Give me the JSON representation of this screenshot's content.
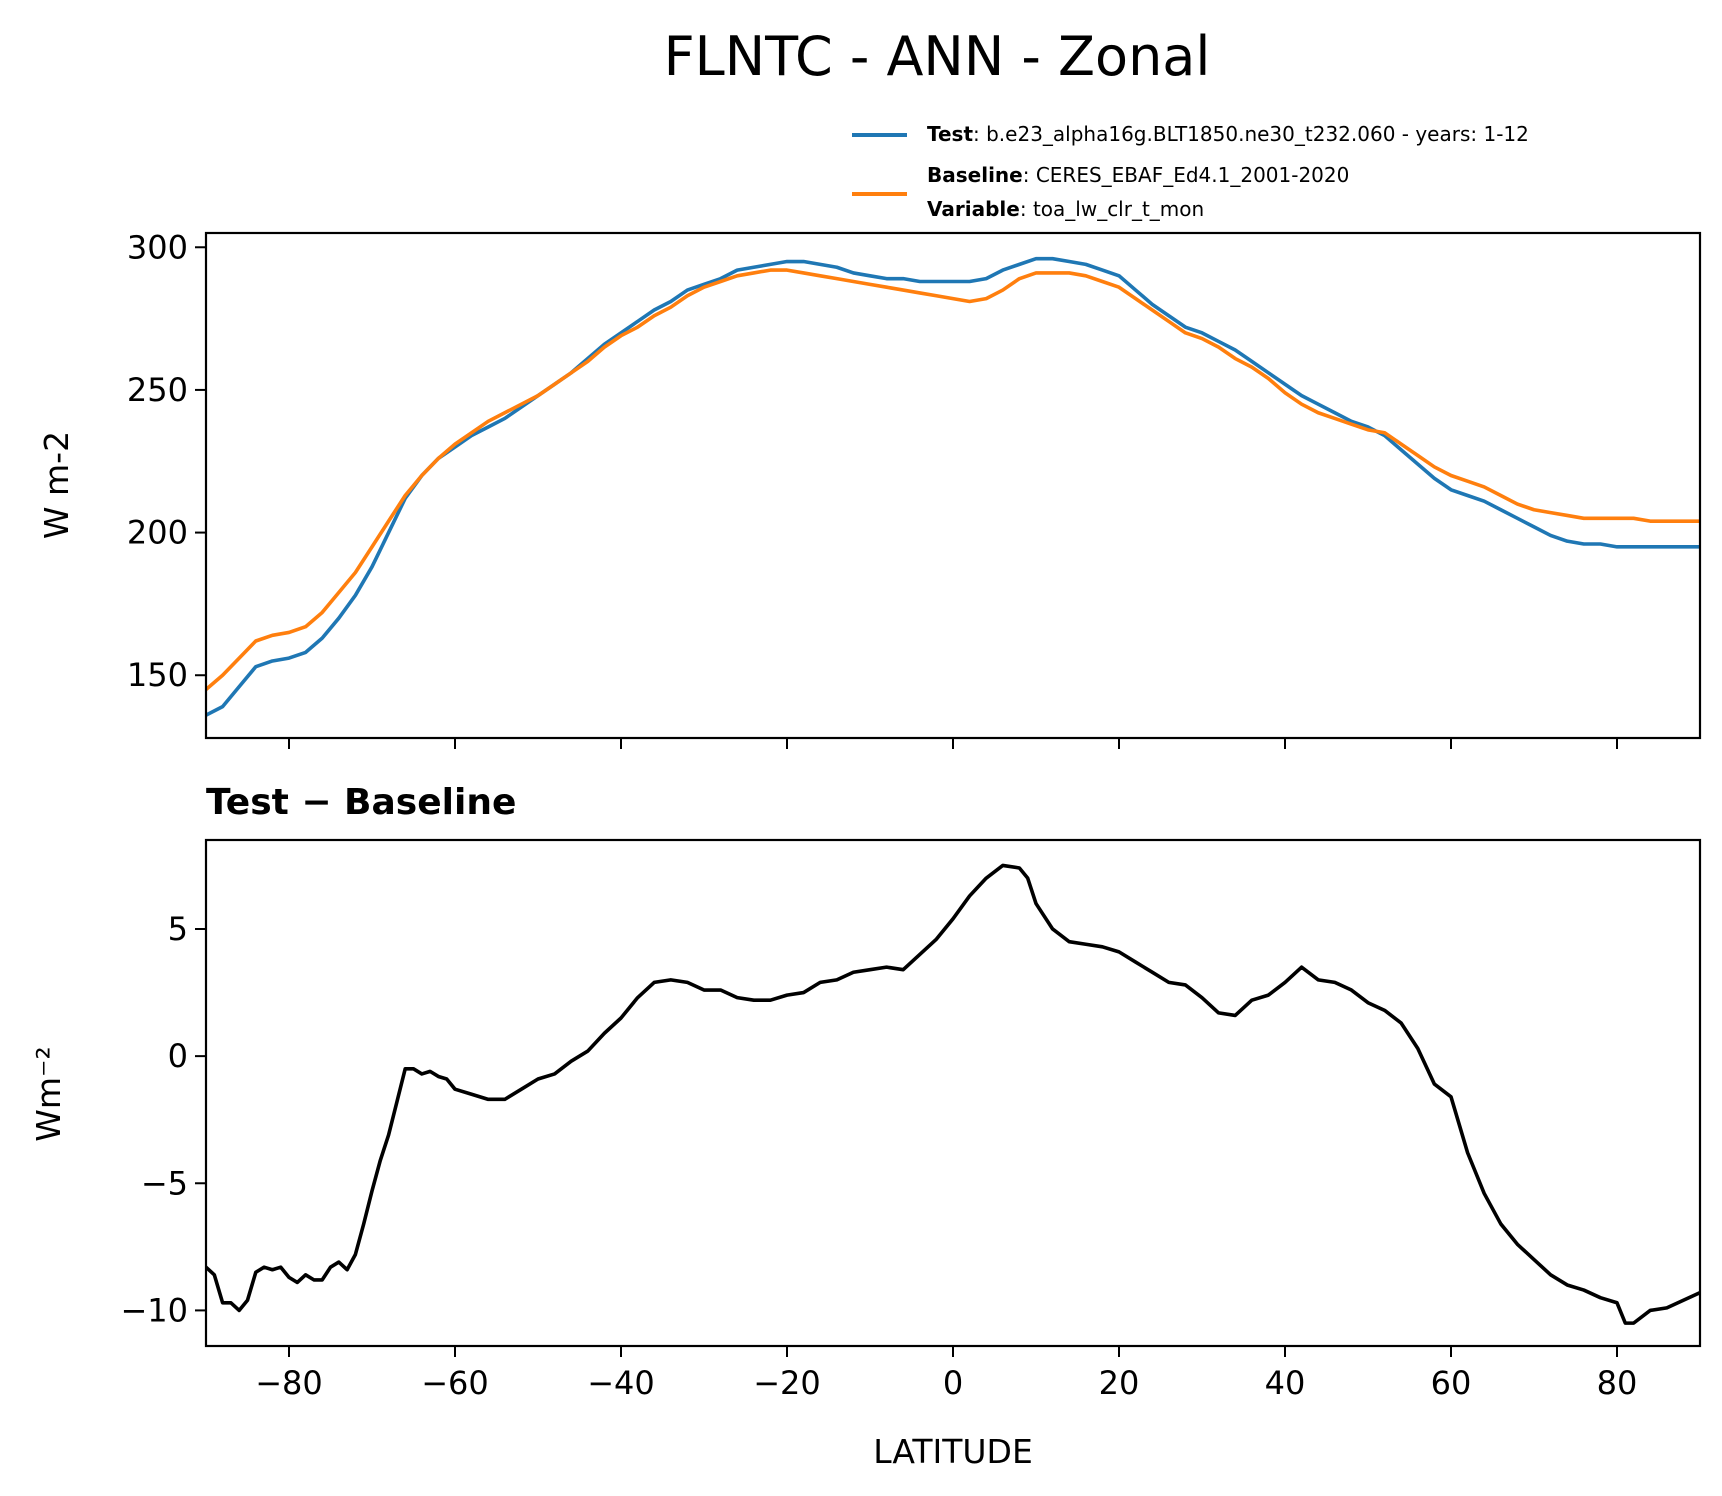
{
  "figure": {
    "title": "FLNTC - ANN - Zonal"
  },
  "legend": {
    "test_key": "Test",
    "test_value": ": b.e23_alpha16g.BLT1850.ne30_t232.060 - years: 1-12",
    "baseline_key": "Baseline",
    "baseline_value": ": CERES_EBAF_Ed4.1_2001-2020",
    "variable_key": "Variable",
    "variable_value": ": toa_lw_clr_t_mon"
  },
  "colors": {
    "test": "#1f77b4",
    "baseline": "#ff7f0e",
    "diff": "#000000"
  },
  "chart_data": [
    {
      "type": "line",
      "ylabel": "W m-2",
      "xlim": [
        -90,
        90
      ],
      "ylim": [
        128,
        305
      ],
      "yticks": [
        150,
        200,
        250,
        300
      ],
      "xticks": [
        -80,
        -60,
        -40,
        -20,
        0,
        20,
        40,
        60,
        80
      ],
      "grid": false,
      "legend_position": "above-right",
      "x": [
        -90,
        -88,
        -86,
        -84,
        -82,
        -80,
        -78,
        -76,
        -74,
        -72,
        -70,
        -68,
        -66,
        -64,
        -62,
        -60,
        -58,
        -56,
        -54,
        -52,
        -50,
        -48,
        -46,
        -44,
        -42,
        -40,
        -38,
        -36,
        -34,
        -32,
        -30,
        -28,
        -26,
        -24,
        -22,
        -20,
        -18,
        -16,
        -14,
        -12,
        -10,
        -8,
        -6,
        -4,
        -2,
        0,
        2,
        4,
        6,
        8,
        10,
        12,
        14,
        16,
        18,
        20,
        22,
        24,
        26,
        28,
        30,
        32,
        34,
        36,
        38,
        40,
        42,
        44,
        46,
        48,
        50,
        52,
        54,
        56,
        58,
        60,
        62,
        64,
        66,
        68,
        70,
        72,
        74,
        76,
        78,
        80,
        82,
        84,
        86,
        88,
        90
      ],
      "series": [
        {
          "name": "Test",
          "color": "#1f77b4",
          "values": [
            136,
            139,
            146,
            153,
            155,
            156,
            158,
            163,
            170,
            178,
            188,
            200,
            212,
            220,
            226,
            230,
            234,
            237,
            240,
            244,
            248,
            252,
            256,
            261,
            266,
            270,
            274,
            278,
            281,
            285,
            287,
            289,
            292,
            293,
            294,
            295,
            295,
            294,
            293,
            291,
            290,
            289,
            289,
            288,
            288,
            288,
            288,
            289,
            292,
            294,
            296,
            296,
            295,
            294,
            292,
            290,
            285,
            280,
            276,
            272,
            270,
            267,
            264,
            260,
            256,
            252,
            248,
            245,
            242,
            239,
            237,
            234,
            229,
            224,
            219,
            215,
            213,
            211,
            208,
            205,
            202,
            199,
            197,
            196,
            196,
            195,
            195,
            195,
            195,
            195,
            195
          ]
        },
        {
          "name": "Baseline",
          "color": "#ff7f0e",
          "values": [
            145,
            150,
            156,
            162,
            164,
            165,
            167,
            172,
            179,
            186,
            195,
            204,
            213,
            220,
            226,
            231,
            235,
            239,
            242,
            245,
            248,
            252,
            256,
            260,
            265,
            269,
            272,
            276,
            279,
            283,
            286,
            288,
            290,
            291,
            292,
            292,
            291,
            290,
            289,
            288,
            287,
            286,
            285,
            284,
            283,
            282,
            281,
            282,
            285,
            289,
            291,
            291,
            291,
            290,
            288,
            286,
            282,
            278,
            274,
            270,
            268,
            265,
            261,
            258,
            254,
            249,
            245,
            242,
            240,
            238,
            236,
            235,
            231,
            227,
            223,
            220,
            218,
            216,
            213,
            210,
            208,
            207,
            206,
            205,
            205,
            205,
            205,
            204,
            204,
            204,
            204
          ]
        }
      ]
    },
    {
      "type": "line",
      "title": "Test − Baseline",
      "xlabel": "LATITUDE",
      "ylabel": "Wm⁻²",
      "xlim": [
        -90,
        90
      ],
      "ylim": [
        -11.4,
        8.5
      ],
      "yticks": [
        -10,
        -5,
        0,
        5
      ],
      "xticks": [
        -80,
        -60,
        -40,
        -20,
        0,
        20,
        40,
        60,
        80
      ],
      "xtick_labels": [
        "−80",
        "−60",
        "−40",
        "−20",
        "0",
        "20",
        "40",
        "60",
        "80"
      ],
      "ytick_labels": [
        "−10",
        "−5",
        "0",
        "5"
      ],
      "grid": false,
      "x": [
        -90,
        -89,
        -88,
        -87,
        -86,
        -85,
        -84,
        -83,
        -82,
        -81,
        -80,
        -79,
        -78,
        -77,
        -76,
        -75,
        -74,
        -73,
        -72,
        -71,
        -70,
        -69,
        -68,
        -67,
        -66,
        -65,
        -64,
        -63,
        -62,
        -61,
        -60,
        -58,
        -56,
        -54,
        -52,
        -50,
        -48,
        -46,
        -44,
        -42,
        -40,
        -38,
        -36,
        -34,
        -32,
        -30,
        -28,
        -26,
        -24,
        -22,
        -20,
        -18,
        -16,
        -14,
        -12,
        -10,
        -8,
        -6,
        -4,
        -2,
        0,
        2,
        4,
        6,
        8,
        9,
        10,
        12,
        14,
        16,
        18,
        20,
        22,
        24,
        26,
        28,
        30,
        32,
        34,
        36,
        38,
        40,
        42,
        44,
        46,
        48,
        50,
        52,
        54,
        56,
        58,
        60,
        62,
        64,
        66,
        68,
        70,
        72,
        74,
        76,
        78,
        80,
        81,
        82,
        84,
        86,
        88,
        90
      ],
      "series": [
        {
          "name": "Test − Baseline",
          "color": "#000000",
          "values": [
            -8.3,
            -8.6,
            -9.7,
            -9.7,
            -10.0,
            -9.6,
            -8.5,
            -8.3,
            -8.4,
            -8.3,
            -8.7,
            -8.9,
            -8.6,
            -8.8,
            -8.8,
            -8.3,
            -8.1,
            -8.4,
            -7.8,
            -6.6,
            -5.3,
            -4.1,
            -3.1,
            -1.8,
            -0.5,
            -0.5,
            -0.7,
            -0.6,
            -0.8,
            -0.9,
            -1.3,
            -1.5,
            -1.7,
            -1.7,
            -1.3,
            -0.9,
            -0.7,
            -0.2,
            0.2,
            0.9,
            1.5,
            2.3,
            2.9,
            3.0,
            2.9,
            2.6,
            2.6,
            2.3,
            2.2,
            2.2,
            2.4,
            2.5,
            2.9,
            3.0,
            3.3,
            3.4,
            3.5,
            3.4,
            4.0,
            4.6,
            5.4,
            6.3,
            7.0,
            7.5,
            7.4,
            7.0,
            6.0,
            5.0,
            4.5,
            4.4,
            4.3,
            4.1,
            3.7,
            3.3,
            2.9,
            2.8,
            2.3,
            1.7,
            1.6,
            2.2,
            2.4,
            2.9,
            3.5,
            3.0,
            2.9,
            2.6,
            2.1,
            1.8,
            1.3,
            0.3,
            -1.1,
            -1.6,
            -3.8,
            -5.4,
            -6.6,
            -7.4,
            -8.0,
            -8.6,
            -9.0,
            -9.2,
            -9.5,
            -9.7,
            -10.5,
            -10.5,
            -10.0,
            -9.9,
            -9.6,
            -9.3
          ]
        }
      ]
    }
  ]
}
